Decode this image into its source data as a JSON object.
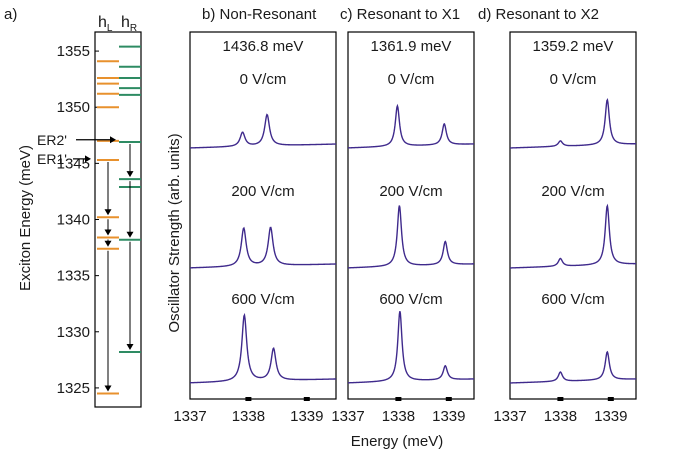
{
  "colors": {
    "hl_level": "#e8912d",
    "hr_level": "#2e8b63",
    "spectrum": "#3f2a8c",
    "axis": "#000000",
    "marker": "#000000"
  },
  "chart_data": [
    {
      "type": "scatter",
      "panel_label": "a)",
      "title": "",
      "xlabel": "",
      "ylabel": "Exciton Energy (meV)",
      "ylim": [
        1323.3,
        1356.7
      ],
      "yticks": [
        1325,
        1330,
        1335,
        1340,
        1345,
        1350,
        1355
      ],
      "columns": [
        {
          "name": "h_L",
          "label": "h",
          "subscript": "L",
          "color": "#e8912d",
          "levels": [
            1324.5,
            1337.4,
            1338.4,
            1340.2,
            1345.3,
            1347.0,
            1350.0,
            1351.2,
            1352.1,
            1352.6,
            1354.1
          ]
        },
        {
          "name": "h_R",
          "label": "h",
          "subscript": "R",
          "color": "#2e8b63",
          "levels": [
            1328.2,
            1338.2,
            1342.9,
            1343.6,
            1346.9,
            1351.1,
            1351.7,
            1352.6,
            1353.6,
            1355.4
          ]
        }
      ],
      "annotations": [
        {
          "label": "ER2'",
          "y": 1347.1
        },
        {
          "label": "ER1'",
          "y": 1345.4
        }
      ],
      "transitions": [
        {
          "column": "h_L",
          "from": 1345.3,
          "to": 1340.2
        },
        {
          "column": "h_L",
          "from": 1340.2,
          "to": 1338.4
        },
        {
          "column": "h_L",
          "from": 1338.4,
          "to": 1337.4
        },
        {
          "column": "h_L",
          "from": 1337.4,
          "to": 1324.5
        },
        {
          "column": "h_R",
          "from": 1346.9,
          "to": 1343.6
        },
        {
          "column": "h_R",
          "from": 1343.6,
          "to": 1338.2
        },
        {
          "column": "h_R",
          "from": 1338.2,
          "to": 1328.2
        }
      ]
    },
    {
      "type": "line",
      "panel_label": "b)",
      "title": "Non-Resonant",
      "excitation": "1436.8 meV",
      "xlim": [
        1337,
        1339.5
      ],
      "xticks": [
        1337,
        1338,
        1339
      ],
      "series": [
        {
          "name": "0 V/cm",
          "peaks": [
            {
              "x": 1337.9,
              "a": 0.18
            },
            {
              "x": 1338.32,
              "a": 0.4
            }
          ]
        },
        {
          "name": "200 V/cm",
          "peaks": [
            {
              "x": 1337.92,
              "a": 0.49
            },
            {
              "x": 1338.38,
              "a": 0.49
            }
          ]
        },
        {
          "name": "600 V/cm",
          "peaks": [
            {
              "x": 1337.93,
              "a": 0.85
            },
            {
              "x": 1338.43,
              "a": 0.41
            }
          ]
        }
      ]
    },
    {
      "type": "line",
      "panel_label": "c)",
      "title": "Resonant to X1",
      "excitation": "1361.9 meV",
      "xlim": [
        1337,
        1339.5
      ],
      "xticks": [
        1337,
        1338,
        1339
      ],
      "series": [
        {
          "name": "0 V/cm",
          "peaks": [
            {
              "x": 1337.98,
              "a": 0.52
            },
            {
              "x": 1338.91,
              "a": 0.27
            }
          ]
        },
        {
          "name": "200 V/cm",
          "peaks": [
            {
              "x": 1338.02,
              "a": 0.78
            },
            {
              "x": 1338.93,
              "a": 0.3
            }
          ]
        },
        {
          "name": "600 V/cm",
          "peaks": [
            {
              "x": 1338.03,
              "a": 0.9
            },
            {
              "x": 1338.93,
              "a": 0.18
            }
          ]
        }
      ]
    },
    {
      "type": "line",
      "panel_label": "d)",
      "title": "Resonant to X2",
      "excitation": "1359.2 meV",
      "xlim": [
        1337,
        1339.5
      ],
      "xticks": [
        1337,
        1338,
        1339
      ],
      "series": [
        {
          "name": "0 V/cm",
          "peaks": [
            {
              "x": 1338,
              "a": 0.07
            },
            {
              "x": 1338.93,
              "a": 0.58
            }
          ]
        },
        {
          "name": "200 V/cm",
          "peaks": [
            {
              "x": 1338,
              "a": 0.1
            },
            {
              "x": 1338.93,
              "a": 0.76
            }
          ]
        },
        {
          "name": "600 V/cm",
          "peaks": [
            {
              "x": 1338,
              "a": 0.12
            },
            {
              "x": 1338.93,
              "a": 0.36
            }
          ]
        }
      ]
    }
  ],
  "shared": {
    "xlabel": "Energy (meV)",
    "ylabel": "Oscillator Strength (arb. units)",
    "marker_positions": [
      1338,
      1339
    ]
  }
}
